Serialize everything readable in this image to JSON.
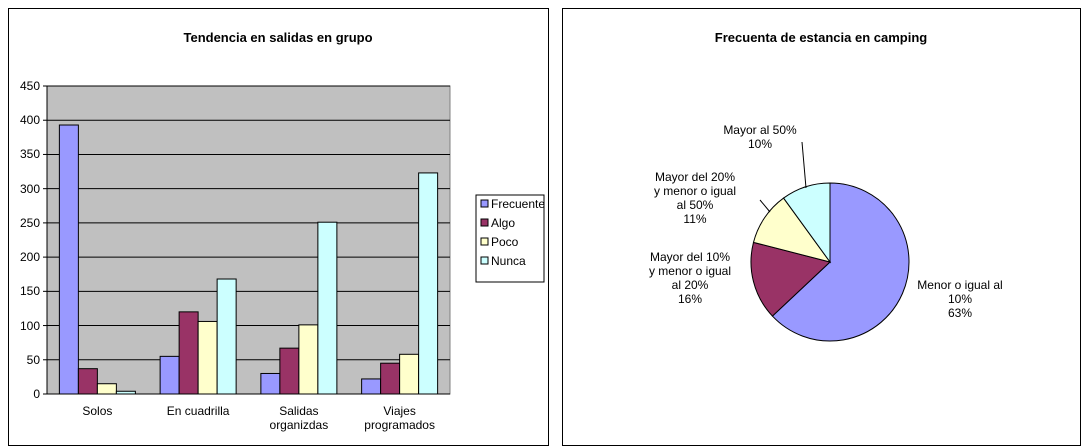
{
  "chart_data": [
    {
      "type": "bar",
      "title": "Tendencia en salidas en grupo",
      "categories": [
        "Solos",
        "En cuadrilla",
        "Salidas\norganizdas",
        "Viajes\nprogramados"
      ],
      "series": [
        {
          "name": "Frecuente",
          "color": "#9999ff",
          "values": [
            393,
            55,
            30,
            22
          ]
        },
        {
          "name": "Algo",
          "color": "#993366",
          "values": [
            37,
            120,
            67,
            45
          ]
        },
        {
          "name": "Poco",
          "color": "#ffffcc",
          "values": [
            15,
            106,
            101,
            58
          ]
        },
        {
          "name": "Nunca",
          "color": "#ccffff",
          "values": [
            4,
            168,
            251,
            323
          ]
        }
      ],
      "ylim": [
        0,
        450
      ],
      "yticks": [
        0,
        50,
        100,
        150,
        200,
        250,
        300,
        350,
        400,
        450
      ],
      "grid": true,
      "legend": "right"
    },
    {
      "type": "pie",
      "title": "Frecuenta de estancia en camping",
      "categories": [
        "Menor o igual al\n10%",
        "Mayor del 10%\ny menor o igual\nal 20%",
        "Mayor del 20%\ny menor o igual\nal 50%",
        "Mayor al 50%"
      ],
      "values": [
        63,
        16,
        11,
        10
      ],
      "value_labels": [
        "63%",
        "16%",
        "11%",
        "10%"
      ],
      "colors": [
        "#9999ff",
        "#993366",
        "#ffffcc",
        "#ccffff"
      ]
    }
  ]
}
